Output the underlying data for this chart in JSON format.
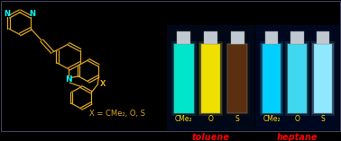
{
  "background_color": "#000000",
  "structure_color": "#DAA520",
  "nitrogen_color": "#00FFFF",
  "label_color": "#DAA520",
  "toluene_label_color": "#FF0000",
  "heptane_label_color": "#FF0000",
  "cme2_o_s_color": "#FFD700",
  "formula_text": "X = CMe₂, O, S",
  "toluene_text": "toluene",
  "heptane_text": "heptane",
  "cme2_text": "CMe₂",
  "o_text": "O",
  "s_text": "S",
  "toluene_vial_colors": [
    "#00E5CC",
    "#F0E000",
    "#5A3010"
  ],
  "toluene_vial_glow": [
    "#00CCBB",
    "#E8D000",
    "#3A2008"
  ],
  "heptane_vial_colors": [
    "#00CFFF",
    "#40D8F0",
    "#90E8FF"
  ],
  "heptane_vial_glow": [
    "#00BFEF",
    "#30C8E0",
    "#80D8EF"
  ],
  "panel_left_bg": "#000818",
  "panel_right_bg": "#000820",
  "vial_cap_color": "#C0C8D0",
  "panel_border": "#222244"
}
